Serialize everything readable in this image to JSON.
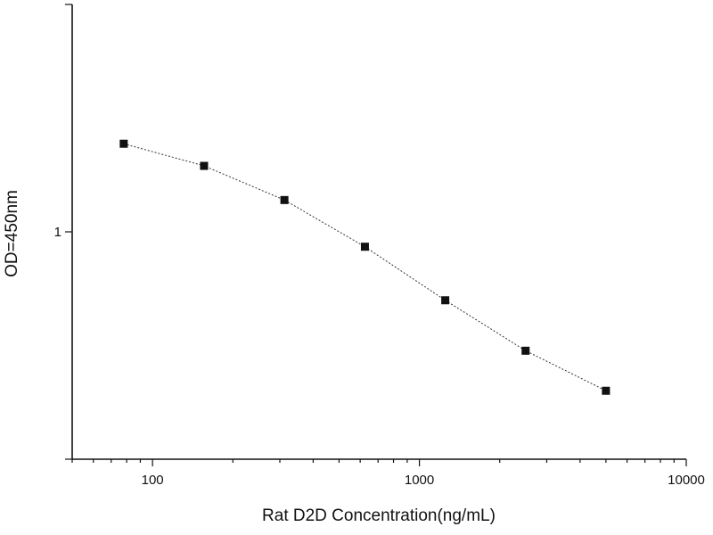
{
  "chart_data": {
    "type": "scatter",
    "title": "",
    "xlabel": "Rat D2D Concentration(ng/mL)",
    "ylabel": "OD=450nm",
    "x_scale": "log",
    "y_scale": "log",
    "xlim": [
      50,
      10000
    ],
    "ylim": [
      0.1,
      10
    ],
    "grid": false,
    "x_ticks": [
      100,
      1000,
      10000
    ],
    "x_tick_labels": [
      "100",
      "1000",
      "10000"
    ],
    "y_ticks": [
      1
    ],
    "y_tick_labels": [
      "1"
    ],
    "series": [
      {
        "connected": true,
        "line_style": "dotted",
        "marker": "square",
        "color": "#111111",
        "x": [
          78,
          156,
          312,
          625,
          1250,
          2500,
          5000
        ],
        "y": [
          2.44,
          1.95,
          1.38,
          0.86,
          0.5,
          0.3,
          0.2
        ]
      }
    ]
  }
}
